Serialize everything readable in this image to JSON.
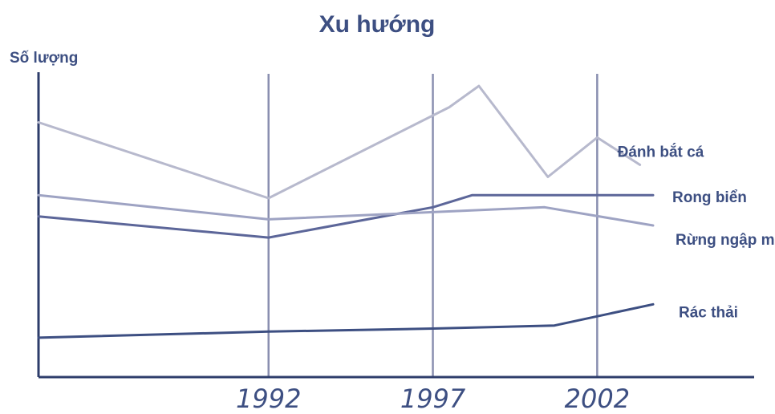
{
  "chart_data": {
    "type": "line",
    "title": "Xu hướng",
    "xlabel": "",
    "ylabel": "Số lượng",
    "grid": "vertical lines at labeled years",
    "x_ticks": [
      "1992",
      "1997",
      "2002"
    ],
    "x_tick_values": [
      1992,
      1997,
      2002
    ],
    "xlim": [
      1985,
      2003.7
    ],
    "ylim": [
      0,
      100
    ],
    "y_ticks_shown": false,
    "legend": "inline labels at right end of each line",
    "series": [
      {
        "name": "Đánh bắt cá",
        "color": "#b7b9cd",
        "x": [
          1985,
          1992,
          1997.5,
          1998.4,
          2000.5,
          2002,
          2003.3
        ],
        "y": [
          84,
          59,
          89,
          96,
          66,
          79,
          70
        ]
      },
      {
        "name": "Rong biển",
        "color": "#5c6699",
        "x": [
          1985,
          1992,
          1997,
          1998.2,
          2003.7
        ],
        "y": [
          53,
          46,
          56,
          60,
          60
        ]
      },
      {
        "name": "Rừng ngập mặn",
        "color": "#9ea3c3",
        "x": [
          1985,
          1992,
          2000.4,
          2003.7
        ],
        "y": [
          60,
          52,
          56,
          50
        ]
      },
      {
        "name": "Rác thải",
        "color": "#3d4f82",
        "x": [
          1985,
          1992,
          1997,
          2000.7,
          2003.7
        ],
        "y": [
          13,
          15,
          16,
          17,
          24
        ]
      }
    ]
  }
}
